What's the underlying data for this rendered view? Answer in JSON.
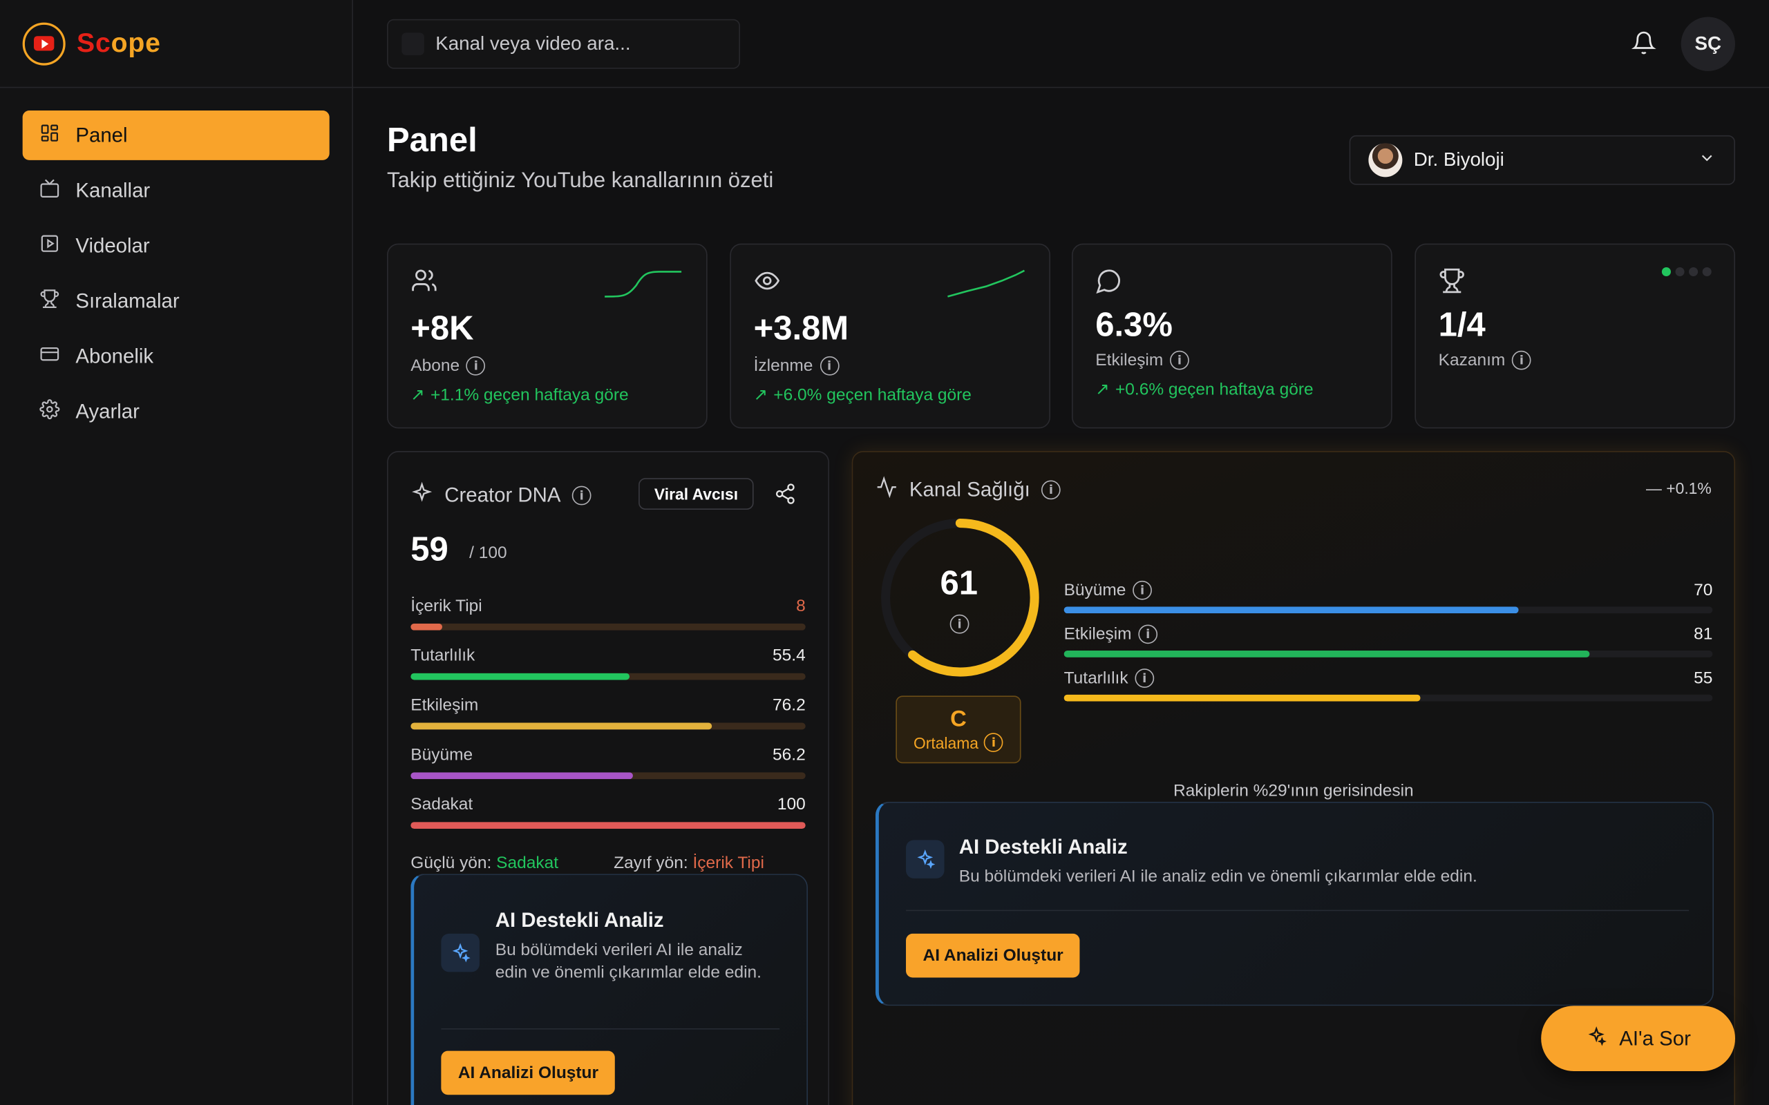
{
  "brand": {
    "name_a": "Sc",
    "name_b": "ope"
  },
  "search": {
    "placeholder": "Kanal veya video ara..."
  },
  "user": {
    "initials": "SÇ"
  },
  "nav": [
    {
      "label": "Panel",
      "icon": "grid-icon",
      "active": true
    },
    {
      "label": "Kanallar",
      "icon": "tv-icon"
    },
    {
      "label": "Videolar",
      "icon": "video-icon"
    },
    {
      "label": "Sıralamalar",
      "icon": "trophy-icon"
    },
    {
      "label": "Abonelik",
      "icon": "credit-card-icon"
    },
    {
      "label": "Ayarlar",
      "icon": "gear-icon"
    }
  ],
  "page": {
    "title": "Panel",
    "subtitle": "Takip ettiğiniz YouTube kanallarının özeti"
  },
  "channel": {
    "name": "Dr. Biyoloji"
  },
  "stats": [
    {
      "value": "+8K",
      "label": "Abone",
      "change": "+1.1% geçen haftaya göre",
      "icon": "users-icon"
    },
    {
      "value": "+3.8M",
      "label": "İzlenme",
      "change": "+6.0% geçen haftaya göre",
      "icon": "eye-icon"
    },
    {
      "value": "6.3%",
      "label": "Etkileşim",
      "change": "+0.6% geçen haftaya göre",
      "icon": "message-icon"
    },
    {
      "value": "1/4",
      "label": "Kazanım",
      "icon": "trophy-icon",
      "progress": "1/4"
    }
  ],
  "dna": {
    "title": "Creator DNA",
    "badge": "Viral Avcısı",
    "score": "59",
    "max": "/ 100",
    "metrics": [
      {
        "label": "İçerik Tipi",
        "value": "8",
        "pct": 8,
        "color": "#e0694a",
        "value_color": "#e0694a"
      },
      {
        "label": "Tutarlılık",
        "value": "55.4",
        "pct": 55.4,
        "color": "#22c55e"
      },
      {
        "label": "Etkileşim",
        "value": "76.2",
        "pct": 76.2,
        "color": "#e2b13c"
      },
      {
        "label": "Büyüme",
        "value": "56.2",
        "pct": 56.2,
        "color": "#a855c7"
      },
      {
        "label": "Sadakat",
        "value": "100",
        "pct": 100,
        "color": "#e05a58"
      }
    ],
    "strong_label": "Güçlü yön:",
    "strong_value": "Sadakat",
    "weak_label": "Zayıf yön:",
    "weak_value": "İçerik Tipi"
  },
  "ai_left": {
    "title": "AI Destekli Analiz",
    "desc": "Bu bölümdeki verileri AI ile analiz edin ve önemli çıkarımlar elde edin.",
    "button": "AI Analizi Oluştur"
  },
  "health": {
    "title": "Kanal Sağlığı",
    "delta": "— +0.1%",
    "score": "61",
    "score_pct": 61,
    "grade": "C",
    "grade_label": "Ortalama",
    "metrics": [
      {
        "label": "Büyüme",
        "value": "70",
        "pct": 70,
        "color": "#3b8fe6"
      },
      {
        "label": "Etkileşim",
        "value": "81",
        "pct": 81,
        "color": "#22b45a"
      },
      {
        "label": "Tutarlılık",
        "value": "55",
        "pct": 55,
        "color": "#f5b91c"
      }
    ],
    "rival": "Rakiplerin %29'ının gerisindesin"
  },
  "ai_right": {
    "title": "AI Destekli Analiz",
    "desc": "Bu bölümdeki verileri AI ile analiz edin ve önemli çıkarımlar elde edin.",
    "button": "AI Analizi Oluştur"
  },
  "ask": {
    "label": "AI'a Sor"
  },
  "colors": {
    "accent": "#f9a32a",
    "positive": "#22c55e",
    "brand_red": "#e62117"
  }
}
